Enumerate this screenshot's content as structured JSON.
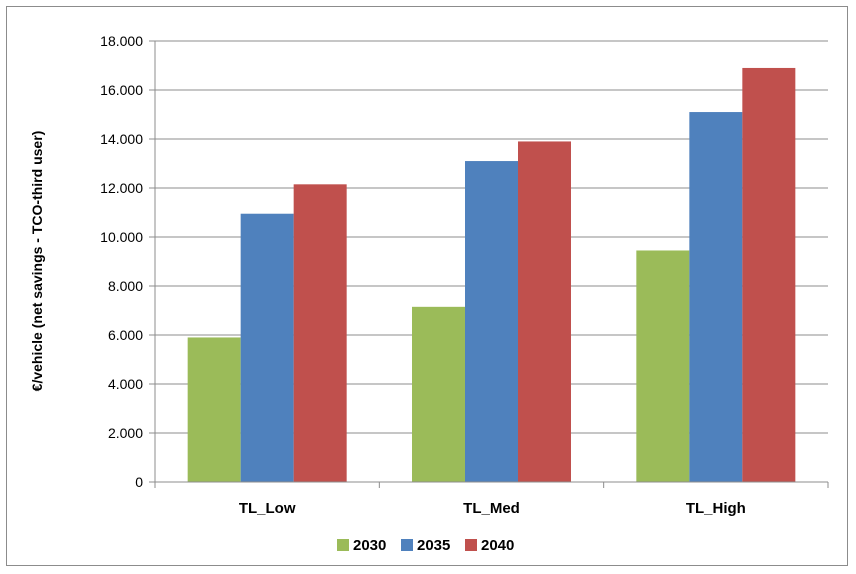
{
  "chart_data": {
    "type": "bar",
    "title": "",
    "xlabel": "",
    "ylabel": "€/vehicle (net savings - TCO-third user)",
    "categories": [
      "TL_Low",
      "TL_Med",
      "TL_High"
    ],
    "series": [
      {
        "name": "2030",
        "color": "#9bbb59",
        "values": [
          5900,
          7150,
          9450
        ]
      },
      {
        "name": "2035",
        "color": "#4f81bd",
        "values": [
          10950,
          13100,
          15100
        ]
      },
      {
        "name": "2040",
        "color": "#c0504d",
        "values": [
          12150,
          13900,
          16900
        ]
      }
    ],
    "ylim": [
      0,
      18000
    ],
    "yticks": [
      0,
      2000,
      4000,
      6000,
      8000,
      10000,
      12000,
      14000,
      16000,
      18000
    ],
    "ytick_labels": [
      "0",
      "2.000",
      "4.000",
      "6.000",
      "8.000",
      "10.000",
      "12.000",
      "14.000",
      "16.000",
      "18.000"
    ],
    "grid": true,
    "legend": "bottom"
  }
}
